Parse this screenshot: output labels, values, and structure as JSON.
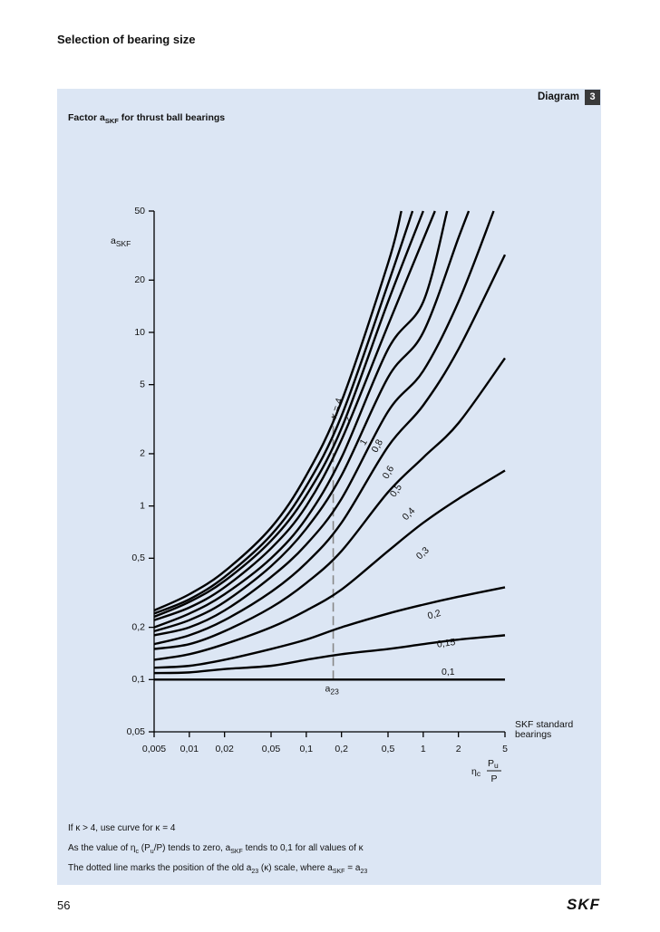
{
  "header": {
    "title": "Selection of bearing size"
  },
  "diagram": {
    "label": "Diagram",
    "number": "3",
    "title": [
      "Factor a",
      {
        "sub": "SKF"
      },
      " for thrust ball bearings"
    ]
  },
  "chart_data": {
    "type": "line",
    "log_x": true,
    "log_y": true,
    "color": "#000000",
    "y_label": [
      "a",
      {
        "sub": "SKF"
      }
    ],
    "x_label": {
      "eta": "η",
      "eta_sub": "c",
      "num": "P",
      "num_sub": "u",
      "den": "P"
    },
    "x_note": "SKF standard bearings",
    "xlim": [
      0.005,
      5
    ],
    "ylim": [
      0.05,
      50
    ],
    "xticks": [
      {
        "value": 0.005,
        "label": "0,005"
      },
      {
        "value": 0.01,
        "label": "0,01"
      },
      {
        "value": 0.02,
        "label": "0,02"
      },
      {
        "value": 0.05,
        "label": "0,05"
      },
      {
        "value": 0.1,
        "label": "0,1"
      },
      {
        "value": 0.2,
        "label": "0,2"
      },
      {
        "value": 0.5,
        "label": "0,5"
      },
      1,
      2,
      5
    ],
    "yticks": [
      {
        "value": 0.05,
        "label": "0,05"
      },
      {
        "value": 0.1,
        "label": "0,1"
      },
      {
        "value": 0.2,
        "label": "0,2"
      },
      {
        "value": 0.5,
        "label": "0,5"
      },
      1,
      2,
      5,
      10,
      20,
      50
    ],
    "series": [
      {
        "name": "κ = 4",
        "x": [
          0.005,
          0.01,
          0.02,
          0.05,
          0.1,
          0.2,
          0.5,
          0.65
        ],
        "values": [
          0.25,
          0.31,
          0.42,
          0.75,
          1.5,
          4,
          25,
          50
        ]
      },
      {
        "name": null,
        "x": [
          0.005,
          0.01,
          0.02,
          0.05,
          0.1,
          0.2,
          0.5,
          0.81
        ],
        "values": [
          0.24,
          0.29,
          0.39,
          0.68,
          1.3,
          3.3,
          19,
          50
        ]
      },
      {
        "name": null,
        "x": [
          0.005,
          0.01,
          0.02,
          0.05,
          0.1,
          0.2,
          0.5,
          1
        ],
        "values": [
          0.23,
          0.28,
          0.37,
          0.63,
          1.15,
          2.8,
          15,
          50
        ]
      },
      {
        "name": "2",
        "x": [
          0.005,
          0.01,
          0.02,
          0.05,
          0.1,
          0.2,
          0.5,
          1.26
        ],
        "values": [
          0.22,
          0.26,
          0.34,
          0.57,
          1,
          2.4,
          11,
          50
        ]
      },
      {
        "name": "1",
        "x": [
          0.005,
          0.01,
          0.02,
          0.05,
          0.1,
          0.2,
          0.5,
          1,
          1.6
        ],
        "values": [
          0.2,
          0.24,
          0.31,
          0.5,
          0.85,
          1.9,
          8,
          15,
          50
        ]
      },
      {
        "name": "0,8",
        "x": [
          0.005,
          0.01,
          0.02,
          0.05,
          0.1,
          0.2,
          0.5,
          1,
          2,
          2.45
        ],
        "values": [
          0.19,
          0.22,
          0.28,
          0.45,
          0.74,
          1.5,
          5.5,
          10,
          35,
          50
        ]
      },
      {
        "name": "0,6",
        "x": [
          0.005,
          0.01,
          0.02,
          0.05,
          0.1,
          0.2,
          0.5,
          1,
          2,
          4
        ],
        "values": [
          0.18,
          0.2,
          0.25,
          0.39,
          0.6,
          1.1,
          3.5,
          6,
          15,
          50
        ]
      },
      {
        "name": "0,5",
        "x": [
          0.005,
          0.01,
          0.02,
          0.05,
          0.1,
          0.2,
          0.5,
          1,
          2,
          5
        ],
        "values": [
          0.16,
          0.18,
          0.22,
          0.32,
          0.47,
          0.8,
          2.2,
          3.8,
          8,
          28
        ]
      },
      {
        "name": "0,4",
        "x": [
          0.005,
          0.01,
          0.02,
          0.05,
          0.1,
          0.2,
          0.5,
          1,
          2,
          5
        ],
        "values": [
          0.15,
          0.16,
          0.19,
          0.26,
          0.36,
          0.55,
          1.2,
          1.9,
          3,
          7.1
        ]
      },
      {
        "name": "0,3",
        "x": [
          0.005,
          0.01,
          0.02,
          0.05,
          0.1,
          0.2,
          0.5,
          1,
          2,
          5
        ],
        "values": [
          0.13,
          0.14,
          0.16,
          0.2,
          0.25,
          0.33,
          0.55,
          0.8,
          1.1,
          1.6
        ]
      },
      {
        "name": "0,2",
        "x": [
          0.005,
          0.01,
          0.02,
          0.05,
          0.1,
          0.2,
          0.5,
          1,
          2,
          5
        ],
        "values": [
          0.117,
          0.12,
          0.13,
          0.15,
          0.17,
          0.2,
          0.24,
          0.27,
          0.3,
          0.34
        ]
      },
      {
        "name": "0,15",
        "x": [
          0.005,
          0.01,
          0.02,
          0.05,
          0.1,
          0.2,
          0.5,
          1,
          2,
          5
        ],
        "values": [
          0.109,
          0.11,
          0.115,
          0.12,
          0.13,
          0.14,
          0.15,
          0.16,
          0.17,
          0.18
        ]
      },
      {
        "name": "0,1",
        "x": [
          0.005,
          5
        ],
        "values": [
          0.1,
          0.1
        ]
      }
    ],
    "reference_line": {
      "label": "a",
      "label_sub": "23",
      "x": 0.17,
      "y": [
        0.1,
        3.3
      ]
    }
  },
  "notes": [
    [
      "If κ > 4, use curve for κ = 4"
    ],
    [
      "As the value of η",
      {
        "sub": "c"
      },
      " (P",
      {
        "sub": "u"
      },
      "/P) tends to zero, a",
      {
        "sub": "SKF"
      },
      " tends to 0,1 for all values of κ"
    ],
    [
      "The dotted line marks the position of the old a",
      {
        "sub": "23"
      },
      " (κ) scale, where a",
      {
        "sub": "SKF"
      },
      " = a",
      {
        "sub": "23"
      }
    ]
  ],
  "footer": {
    "page": "56",
    "logo": "SKF"
  }
}
